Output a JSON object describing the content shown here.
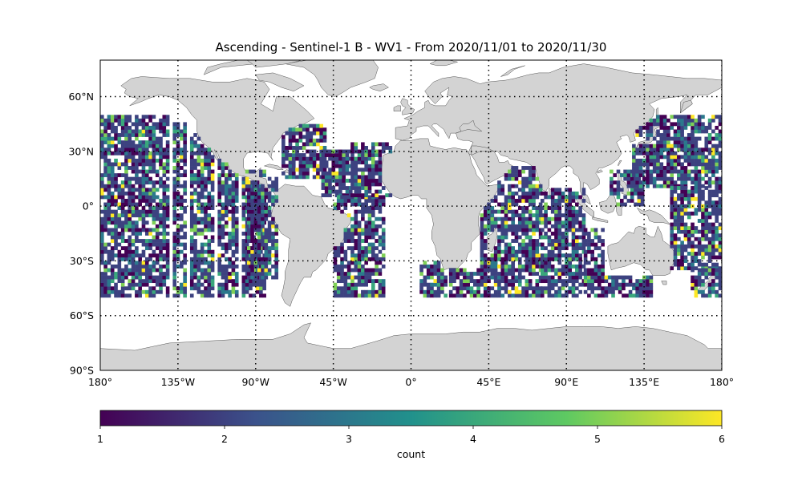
{
  "title": "Ascending - Sentinel-1 B - WV1 - From 2020/11/01 to 2020/11/30",
  "chart_data": {
    "type": "heatmap",
    "projection": "plate-carree",
    "xlim": [
      -180,
      180
    ],
    "ylim": [
      -90,
      80
    ],
    "x_ticks": [
      {
        "value": -180,
        "label": "180°"
      },
      {
        "value": -135,
        "label": "135°W"
      },
      {
        "value": -90,
        "label": "90°W"
      },
      {
        "value": -45,
        "label": "45°W"
      },
      {
        "value": 0,
        "label": "0°"
      },
      {
        "value": 45,
        "label": "45°E"
      },
      {
        "value": 90,
        "label": "90°E"
      },
      {
        "value": 135,
        "label": "135°E"
      },
      {
        "value": 180,
        "label": "180°"
      }
    ],
    "y_ticks": [
      {
        "value": 60,
        "label": "60°N"
      },
      {
        "value": 30,
        "label": "30°N"
      },
      {
        "value": 0,
        "label": "0°"
      },
      {
        "value": -30,
        "label": "30°S"
      },
      {
        "value": -60,
        "label": "60°S"
      },
      {
        "value": -90,
        "label": "90°S"
      }
    ],
    "grid": true,
    "land_color": "#d3d3d3",
    "colormap": "viridis",
    "colormap_stops": [
      "#440154",
      "#3b528b",
      "#21918c",
      "#5ec962",
      "#fde725"
    ],
    "colorbar": {
      "min": 1,
      "max": 6,
      "ticks": [
        1,
        2,
        3,
        4,
        5,
        6
      ],
      "label": "count",
      "placement": "bottom"
    },
    "observation_lat_range": [
      -50,
      50
    ],
    "swaths": [
      {
        "lon": [
          -180,
          -140
        ],
        "lat": [
          -50,
          50
        ]
      },
      {
        "lon": [
          -138,
          -130
        ],
        "lat": [
          -50,
          45
        ]
      },
      {
        "lon": [
          -128,
          -115
        ],
        "lat": [
          -50,
          40
        ]
      },
      {
        "lon": [
          -112,
          -100
        ],
        "lat": [
          -50,
          25
        ]
      },
      {
        "lon": [
          -98,
          -85
        ],
        "lat": [
          -50,
          20
        ]
      },
      {
        "lon": [
          -95,
          -78
        ],
        "lat": [
          -40,
          15
        ]
      },
      {
        "lon": [
          -75,
          -50
        ],
        "lat": [
          15,
          45
        ]
      },
      {
        "lon": [
          -52,
          -35
        ],
        "lat": [
          5,
          30
        ]
      },
      {
        "lon": [
          -45,
          -15
        ],
        "lat": [
          -50,
          5
        ]
      },
      {
        "lon": [
          -35,
          -12
        ],
        "lat": [
          5,
          35
        ]
      },
      {
        "lon": [
          5,
          20
        ],
        "lat": [
          -50,
          -30
        ]
      },
      {
        "lon": [
          22,
          40
        ],
        "lat": [
          -50,
          -35
        ]
      },
      {
        "lon": [
          40,
          55
        ],
        "lat": [
          -50,
          10
        ]
      },
      {
        "lon": [
          50,
          75
        ],
        "lat": [
          -50,
          22
        ]
      },
      {
        "lon": [
          75,
          100
        ],
        "lat": [
          -50,
          10
        ]
      },
      {
        "lon": [
          100,
          112
        ],
        "lat": [
          -50,
          -12
        ]
      },
      {
        "lon": [
          112,
          140
        ],
        "lat": [
          -50,
          -38
        ]
      },
      {
        "lon": [
          115,
          135
        ],
        "lat": [
          0,
          20
        ]
      },
      {
        "lon": [
          128,
          180
        ],
        "lat": [
          10,
          50
        ]
      },
      {
        "lon": [
          150,
          180
        ],
        "lat": [
          -35,
          10
        ]
      },
      {
        "lon": [
          162,
          180
        ],
        "lat": [
          -50,
          -35
        ]
      }
    ]
  }
}
